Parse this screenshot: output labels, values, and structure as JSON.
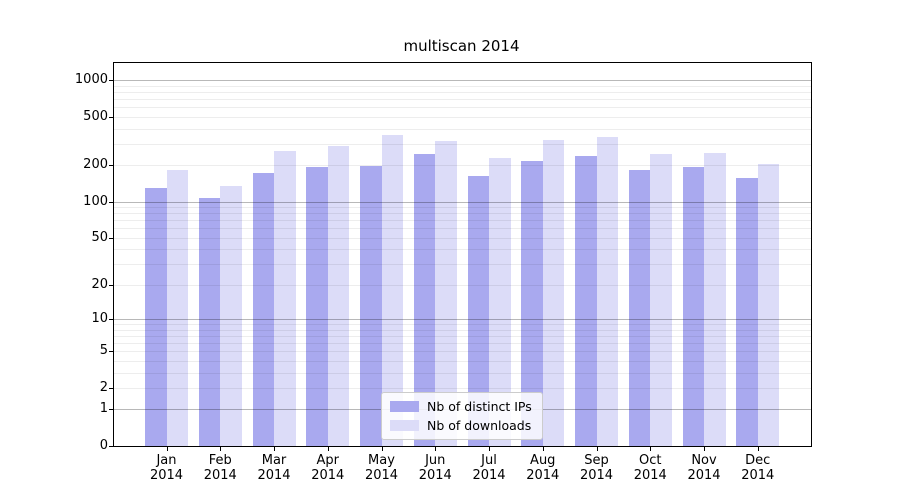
{
  "chart_data": {
    "type": "bar",
    "title": "multiscan 2014",
    "categories": [
      "Jan",
      "Feb",
      "Mar",
      "Apr",
      "May",
      "Jun",
      "Jul",
      "Aug",
      "Sep",
      "Oct",
      "Nov",
      "Dec"
    ],
    "x_tick_second_line": "2014",
    "series": [
      {
        "name": "Nb of distinct IPs",
        "color": "#a9a9ef",
        "values": [
          130,
          107,
          172,
          193,
          197,
          247,
          162,
          216,
          238,
          182,
          193,
          156
        ]
      },
      {
        "name": "Nb of downloads",
        "color": "#dcdcf8",
        "values": [
          183,
          135,
          261,
          286,
          352,
          315,
          229,
          320,
          340,
          247,
          251,
          204
        ]
      }
    ],
    "xlabel": "",
    "ylabel": "",
    "yscale": "log1p",
    "ylim": [
      0,
      1381
    ],
    "yticks": [
      0,
      1,
      2,
      5,
      10,
      20,
      50,
      100,
      200,
      500,
      1000
    ],
    "ytick_labels": [
      "0",
      "1",
      "2",
      "5",
      "10",
      "20",
      "50",
      "100",
      "200",
      "500",
      "1000"
    ],
    "major_gridlines": [
      1,
      10,
      100,
      1000
    ],
    "minor_gridlines": [
      2,
      3,
      4,
      5,
      6,
      7,
      8,
      9,
      20,
      30,
      40,
      50,
      60,
      70,
      80,
      90,
      200,
      300,
      400,
      500,
      600,
      700,
      800,
      900
    ],
    "grid": true,
    "legend_position": "inside lower center"
  },
  "legend": {
    "items": [
      {
        "label": "Nb of distinct IPs"
      },
      {
        "label": "Nb of downloads"
      }
    ]
  }
}
